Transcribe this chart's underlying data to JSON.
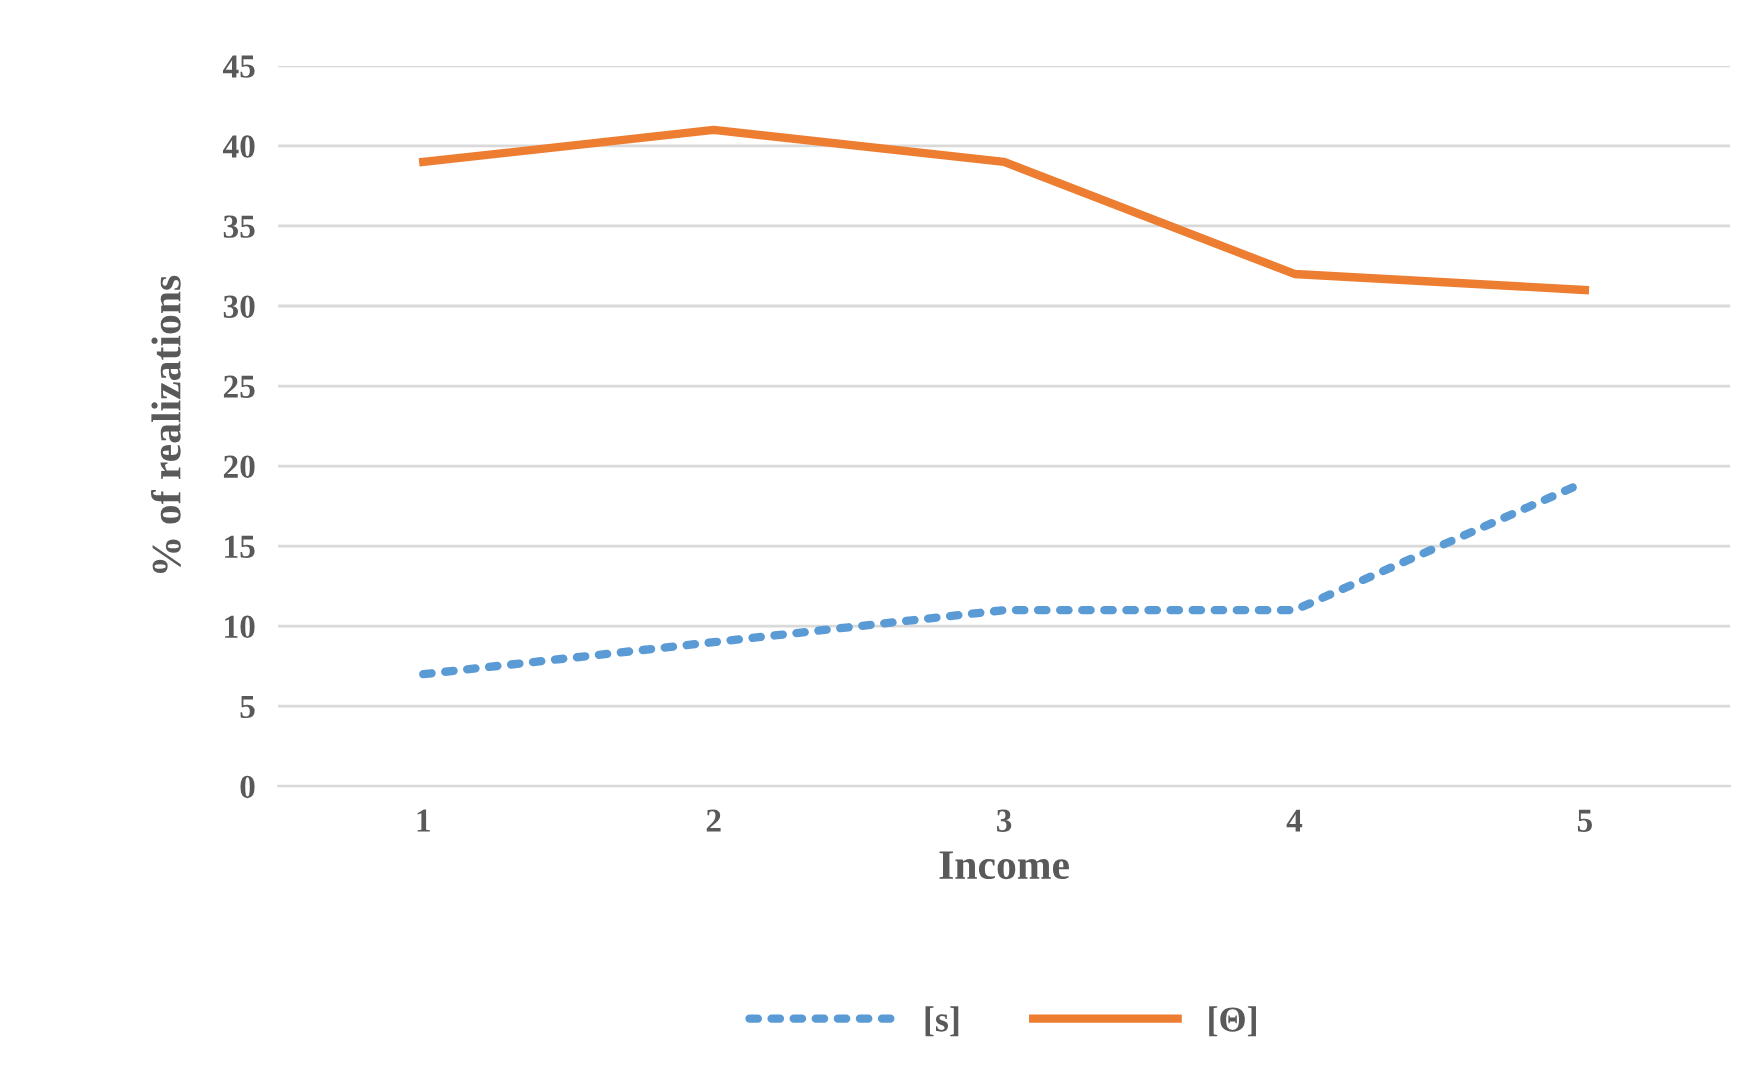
{
  "chart_data": {
    "type": "line",
    "xlabel": "Income",
    "ylabel": "% of realizations",
    "categories": [
      "1",
      "2",
      "3",
      "4",
      "5"
    ],
    "series": [
      {
        "name": "[s]",
        "color": "#5b9bd5",
        "line_style": "dotted",
        "values": [
          7,
          9,
          11,
          11,
          19
        ]
      },
      {
        "name": "[Θ]",
        "color": "#ed7d31",
        "line_style": "solid",
        "values": [
          39,
          41,
          39,
          32,
          31
        ]
      }
    ],
    "ylim": [
      0,
      45
    ],
    "yticks": [
      0,
      5,
      10,
      15,
      20,
      25,
      30,
      35,
      40,
      45
    ],
    "grid": "y",
    "legend": "bottom"
  }
}
